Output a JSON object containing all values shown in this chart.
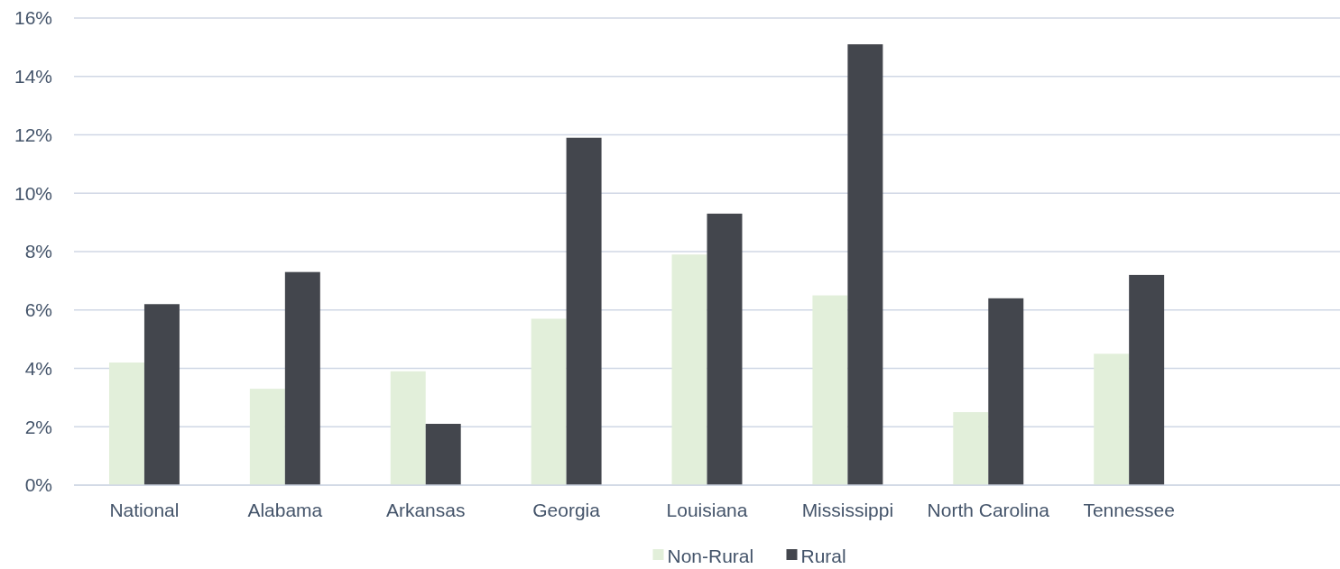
{
  "chart_data": {
    "type": "bar",
    "categories": [
      "National",
      "Alabama",
      "Arkansas",
      "Georgia",
      "Louisiana",
      "Mississippi",
      "North Carolina",
      "Tennessee",
      null
    ],
    "series": [
      {
        "name": "Non-Rural",
        "color": "#e2efda",
        "values": [
          4.2,
          3.3,
          3.9,
          5.7,
          7.9,
          6.5,
          2.5,
          4.5,
          null
        ]
      },
      {
        "name": "Rural",
        "color": "#43464d",
        "values": [
          6.2,
          7.3,
          2.1,
          11.9,
          9.3,
          15.1,
          6.4,
          7.2,
          null
        ]
      }
    ],
    "ylim": [
      0,
      16
    ],
    "yticks": [
      {
        "value": 0,
        "label": "0%"
      },
      {
        "value": 2,
        "label": "2%"
      },
      {
        "value": 4,
        "label": "4%"
      },
      {
        "value": 6,
        "label": "6%"
      },
      {
        "value": 8,
        "label": "8%"
      },
      {
        "value": 10,
        "label": "10%"
      },
      {
        "value": 12,
        "label": "12%"
      },
      {
        "value": 14,
        "label": "14%"
      },
      {
        "value": 16,
        "label": "16%"
      }
    ],
    "grid": "y",
    "legend": "bottom"
  }
}
